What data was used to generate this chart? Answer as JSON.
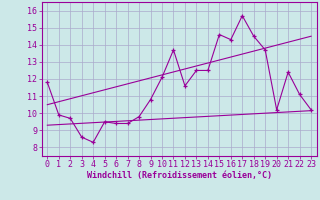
{
  "xlabel": "Windchill (Refroidissement éolien,°C)",
  "background_color": "#cce8e8",
  "grid_color": "#aaaacc",
  "line_color": "#990099",
  "xlim": [
    -0.5,
    23.5
  ],
  "ylim": [
    7.5,
    16.5
  ],
  "xticks": [
    0,
    1,
    2,
    3,
    4,
    5,
    6,
    7,
    8,
    9,
    10,
    11,
    12,
    13,
    14,
    15,
    16,
    17,
    18,
    19,
    20,
    21,
    22,
    23
  ],
  "yticks": [
    8,
    9,
    10,
    11,
    12,
    13,
    14,
    15,
    16
  ],
  "line1_x": [
    0,
    1,
    2,
    3,
    4,
    5,
    6,
    7,
    8,
    9,
    10,
    11,
    12,
    13,
    14,
    15,
    16,
    17,
    18,
    19,
    20,
    21,
    22,
    23
  ],
  "line1_y": [
    11.8,
    9.9,
    9.7,
    8.6,
    8.3,
    9.5,
    9.4,
    9.4,
    9.8,
    10.8,
    12.1,
    13.7,
    11.6,
    12.5,
    12.5,
    14.6,
    14.3,
    15.7,
    14.5,
    13.7,
    10.2,
    12.4,
    11.1,
    10.2
  ],
  "line2_x": [
    0,
    23
  ],
  "line2_y": [
    10.5,
    14.5
  ],
  "line3_x": [
    0,
    23
  ],
  "line3_y": [
    9.3,
    10.15
  ],
  "xlabel_fontsize": 6,
  "tick_fontsize": 6
}
